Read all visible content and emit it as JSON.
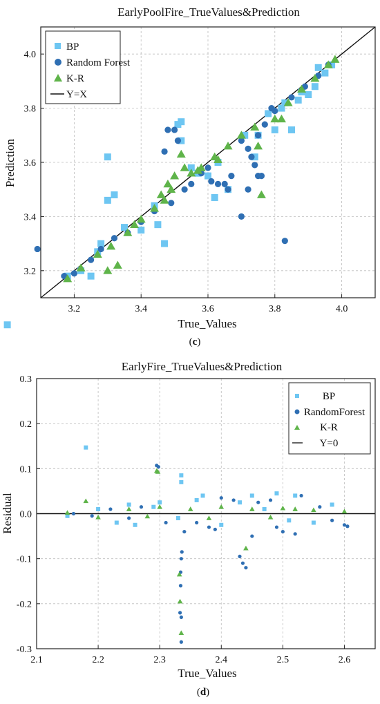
{
  "figure": {
    "caption_c_pre": "(",
    "caption_c_mid": "c",
    "caption_c_post": ")",
    "caption_d_pre": "(",
    "caption_d_mid": "d",
    "caption_d_post": ")"
  },
  "colors": {
    "bp": "#6ec6f2",
    "rf": "#2f6fb3",
    "kr": "#5fb44a",
    "line": "#111111"
  },
  "chart_data": [
    {
      "type": "scatter",
      "panel": "c",
      "title": "EarlyPoolFire_TrueValues&Prediction",
      "xlabel": "True_Values",
      "ylabel": "Prediction",
      "xlim": [
        3.1,
        4.1
      ],
      "ylim": [
        3.1,
        4.1
      ],
      "xticks": [
        3.2,
        3.4,
        3.6,
        3.8,
        4.0
      ],
      "yticks": [
        3.2,
        3.4,
        3.6,
        3.8,
        4.0
      ],
      "grid": true,
      "legend_position": "top-left",
      "reference_line": {
        "name": "Y=X",
        "slope": 1,
        "intercept": 0
      },
      "series": [
        {
          "name": "BP",
          "marker": "square",
          "color": "#6ec6f2",
          "points": [
            [
              3.0,
              3.0
            ],
            [
              3.3,
              3.62
            ],
            [
              3.3,
              3.46
            ],
            [
              3.32,
              3.48
            ],
            [
              3.47,
              3.3
            ],
            [
              3.52,
              3.75
            ],
            [
              3.51,
              3.74
            ],
            [
              3.52,
              3.68
            ],
            [
              3.25,
              3.18
            ],
            [
              3.45,
              3.37
            ],
            [
              3.35,
              3.36
            ],
            [
              3.44,
              3.44
            ],
            [
              3.6,
              3.55
            ],
            [
              3.62,
              3.47
            ],
            [
              3.66,
              3.5
            ],
            [
              3.71,
              3.7
            ],
            [
              3.78,
              3.78
            ],
            [
              3.8,
              3.72
            ],
            [
              3.85,
              3.72
            ],
            [
              3.82,
              3.8
            ],
            [
              3.87,
              3.83
            ],
            [
              3.88,
              3.86
            ],
            [
              3.9,
              3.85
            ],
            [
              3.92,
              3.88
            ],
            [
              3.95,
              3.93
            ],
            [
              3.97,
              3.96
            ],
            [
              3.93,
              3.95
            ],
            [
              3.27,
              3.27
            ],
            [
              3.28,
              3.3
            ],
            [
              3.22,
              3.2
            ],
            [
              3.18,
              3.18
            ],
            [
              3.4,
              3.35
            ],
            [
              3.55,
              3.58
            ],
            [
              3.74,
              3.62
            ],
            [
              3.75,
              3.7
            ],
            [
              3.63,
              3.6
            ],
            [
              3.57,
              3.56
            ],
            [
              3.83,
              3.82
            ]
          ]
        },
        {
          "name": "Random Forest",
          "marker": "circle",
          "color": "#2f6fb3",
          "points": [
            [
              3.09,
              3.28
            ],
            [
              3.83,
              3.31
            ],
            [
              3.48,
              3.72
            ],
            [
              3.5,
              3.72
            ],
            [
              3.51,
              3.68
            ],
            [
              3.47,
              3.64
            ],
            [
              3.61,
              3.53
            ],
            [
              3.63,
              3.52
            ],
            [
              3.65,
              3.52
            ],
            [
              3.66,
              3.5
            ],
            [
              3.67,
              3.55
            ],
            [
              3.72,
              3.65
            ],
            [
              3.73,
              3.62
            ],
            [
              3.74,
              3.59
            ],
            [
              3.75,
              3.55
            ],
            [
              3.76,
              3.55
            ],
            [
              3.72,
              3.5
            ],
            [
              3.75,
              3.7
            ],
            [
              3.77,
              3.74
            ],
            [
              3.6,
              3.58
            ],
            [
              3.58,
              3.56
            ],
            [
              3.7,
              3.68
            ],
            [
              3.79,
              3.8
            ],
            [
              3.8,
              3.79
            ],
            [
              3.85,
              3.84
            ],
            [
              3.89,
              3.88
            ],
            [
              3.93,
              3.92
            ],
            [
              3.96,
              3.96
            ],
            [
              3.44,
              3.42
            ],
            [
              3.4,
              3.38
            ],
            [
              3.36,
              3.34
            ],
            [
              3.32,
              3.32
            ],
            [
              3.28,
              3.28
            ],
            [
              3.25,
              3.24
            ],
            [
              3.2,
              3.19
            ],
            [
              3.17,
              3.18
            ],
            [
              3.55,
              3.52
            ],
            [
              3.53,
              3.5
            ],
            [
              3.49,
              3.45
            ],
            [
              3.7,
              3.4
            ]
          ]
        },
        {
          "name": "K-R",
          "marker": "triangle",
          "color": "#5fb44a",
          "points": [
            [
              3.33,
              3.22
            ],
            [
              3.3,
              3.2
            ],
            [
              3.18,
              3.17
            ],
            [
              3.22,
              3.21
            ],
            [
              3.27,
              3.26
            ],
            [
              3.31,
              3.29
            ],
            [
              3.36,
              3.34
            ],
            [
              3.4,
              3.39
            ],
            [
              3.44,
              3.43
            ],
            [
              3.46,
              3.48
            ],
            [
              3.48,
              3.52
            ],
            [
              3.5,
              3.55
            ],
            [
              3.52,
              3.63
            ],
            [
              3.53,
              3.58
            ],
            [
              3.55,
              3.56
            ],
            [
              3.58,
              3.58
            ],
            [
              3.62,
              3.62
            ],
            [
              3.66,
              3.66
            ],
            [
              3.7,
              3.7
            ],
            [
              3.74,
              3.73
            ],
            [
              3.75,
              3.66
            ],
            [
              3.76,
              3.48
            ],
            [
              3.8,
              3.76
            ],
            [
              3.82,
              3.76
            ],
            [
              3.84,
              3.82
            ],
            [
              3.88,
              3.87
            ],
            [
              3.92,
              3.91
            ],
            [
              3.96,
              3.96
            ],
            [
              3.98,
              3.98
            ],
            [
              3.63,
              3.61
            ],
            [
              3.57,
              3.57
            ],
            [
              3.49,
              3.5
            ],
            [
              3.47,
              3.46
            ],
            [
              3.38,
              3.37
            ]
          ]
        }
      ]
    },
    {
      "type": "scatter",
      "panel": "d",
      "title": "EarlyFire_TrueValues&Prediction",
      "xlabel": "True_Values",
      "ylabel": "Residual",
      "xlim": [
        2.1,
        2.65
      ],
      "ylim": [
        -0.3,
        0.3
      ],
      "xticks": [
        2.1,
        2.2,
        2.3,
        2.4,
        2.5,
        2.6
      ],
      "yticks": [
        -0.3,
        -0.2,
        -0.1,
        0.0,
        0.1,
        0.2,
        0.3
      ],
      "grid": true,
      "legend_position": "top-right",
      "reference_line": {
        "name": "Y=0",
        "slope": 0,
        "intercept": 0
      },
      "series": [
        {
          "name": "BP",
          "marker": "square",
          "color": "#6ec6f2",
          "points": [
            [
              2.18,
              0.147
            ],
            [
              2.335,
              0.085
            ],
            [
              2.335,
              0.07
            ],
            [
              2.3,
              0.025
            ],
            [
              2.36,
              0.03
            ],
            [
              2.37,
              0.04
            ],
            [
              2.49,
              0.045
            ],
            [
              2.45,
              0.04
            ],
            [
              2.52,
              0.04
            ],
            [
              2.23,
              -0.02
            ],
            [
              2.26,
              -0.025
            ],
            [
              2.25,
              0.02
            ],
            [
              2.15,
              -0.005
            ],
            [
              2.4,
              -0.025
            ],
            [
              2.43,
              0.025
            ],
            [
              2.55,
              -0.02
            ],
            [
              2.58,
              0.02
            ],
            [
              2.29,
              0.015
            ],
            [
              2.33,
              -0.01
            ],
            [
              2.47,
              0.01
            ],
            [
              2.51,
              -0.015
            ],
            [
              2.2,
              0.01
            ]
          ]
        },
        {
          "name": "RandomForest",
          "marker": "circle",
          "color": "#2f6fb3",
          "points": [
            [
              2.295,
              0.107
            ],
            [
              2.298,
              0.104
            ],
            [
              2.335,
              -0.285
            ],
            [
              2.333,
              -0.22
            ],
            [
              2.335,
              -0.23
            ],
            [
              2.334,
              -0.16
            ],
            [
              2.334,
              -0.13
            ],
            [
              2.335,
              -0.1
            ],
            [
              2.336,
              -0.085
            ],
            [
              2.43,
              -0.095
            ],
            [
              2.435,
              -0.11
            ],
            [
              2.44,
              -0.12
            ],
            [
              2.45,
              -0.05
            ],
            [
              2.5,
              -0.04
            ],
            [
              2.52,
              -0.045
            ],
            [
              2.6,
              -0.025
            ],
            [
              2.605,
              -0.028
            ],
            [
              2.53,
              0.04
            ],
            [
              2.48,
              0.03
            ],
            [
              2.4,
              0.035
            ],
            [
              2.42,
              0.03
            ],
            [
              2.38,
              -0.03
            ],
            [
              2.36,
              -0.02
            ],
            [
              2.34,
              -0.04
            ],
            [
              2.31,
              -0.02
            ],
            [
              2.27,
              0.015
            ],
            [
              2.25,
              -0.01
            ],
            [
              2.22,
              0.01
            ],
            [
              2.19,
              -0.005
            ],
            [
              2.16,
              0.0
            ],
            [
              2.56,
              0.015
            ],
            [
              2.58,
              -0.015
            ],
            [
              2.46,
              0.025
            ],
            [
              2.39,
              -0.035
            ],
            [
              2.49,
              -0.03
            ]
          ]
        },
        {
          "name": "K-R",
          "marker": "triangle",
          "color": "#5fb44a",
          "points": [
            [
              2.18,
              0.028
            ],
            [
              2.295,
              0.095
            ],
            [
              2.297,
              0.093
            ],
            [
              2.335,
              -0.265
            ],
            [
              2.333,
              -0.195
            ],
            [
              2.332,
              -0.135
            ],
            [
              2.44,
              -0.077
            ],
            [
              2.25,
              0.01
            ],
            [
              2.3,
              0.015
            ],
            [
              2.35,
              0.01
            ],
            [
              2.4,
              0.015
            ],
            [
              2.45,
              0.01
            ],
            [
              2.5,
              0.012
            ],
            [
              2.55,
              0.008
            ],
            [
              2.2,
              -0.008
            ],
            [
              2.15,
              0.002
            ],
            [
              2.6,
              0.005
            ],
            [
              2.28,
              -0.006
            ],
            [
              2.38,
              -0.01
            ],
            [
              2.48,
              -0.008
            ],
            [
              2.52,
              0.01
            ]
          ]
        }
      ]
    }
  ]
}
